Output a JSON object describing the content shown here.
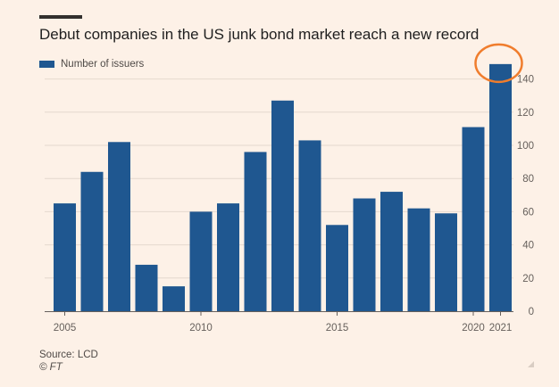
{
  "title": "Debut companies in the US junk bond market reach a new record",
  "legend": {
    "label": "Number of issuers"
  },
  "source": "Source: LCD",
  "copyright": "© FT",
  "colors": {
    "bar": "#1f5790",
    "grid": "#e4d8ce",
    "baseline": "#66605c",
    "highlight": "#f07d2d",
    "background": "#fdf1e7"
  },
  "chart_data": {
    "type": "bar",
    "x": [
      2005,
      2006,
      2007,
      2008,
      2009,
      2010,
      2011,
      2012,
      2013,
      2014,
      2015,
      2016,
      2017,
      2018,
      2019,
      2020,
      2021
    ],
    "x_tick_labels": [
      {
        "year": 2005,
        "label": "2005"
      },
      {
        "year": 2010,
        "label": "2010"
      },
      {
        "year": 2015,
        "label": "2015"
      },
      {
        "year": 2020,
        "label": "2020"
      },
      {
        "year": 2021,
        "label": "2021"
      }
    ],
    "series": [
      {
        "name": "Number of issuers",
        "values": [
          65,
          84,
          102,
          28,
          15,
          60,
          65,
          96,
          127,
          103,
          52,
          68,
          72,
          62,
          59,
          111,
          149
        ]
      }
    ],
    "ylim": [
      0,
      150
    ],
    "yticks": [
      0,
      20,
      40,
      60,
      80,
      100,
      120,
      140
    ],
    "y_axis_side": "right",
    "grid": true,
    "legend_position": "top-left",
    "highlight_year": 2021,
    "title": "Debut companies in the US junk bond market reach a new record"
  }
}
